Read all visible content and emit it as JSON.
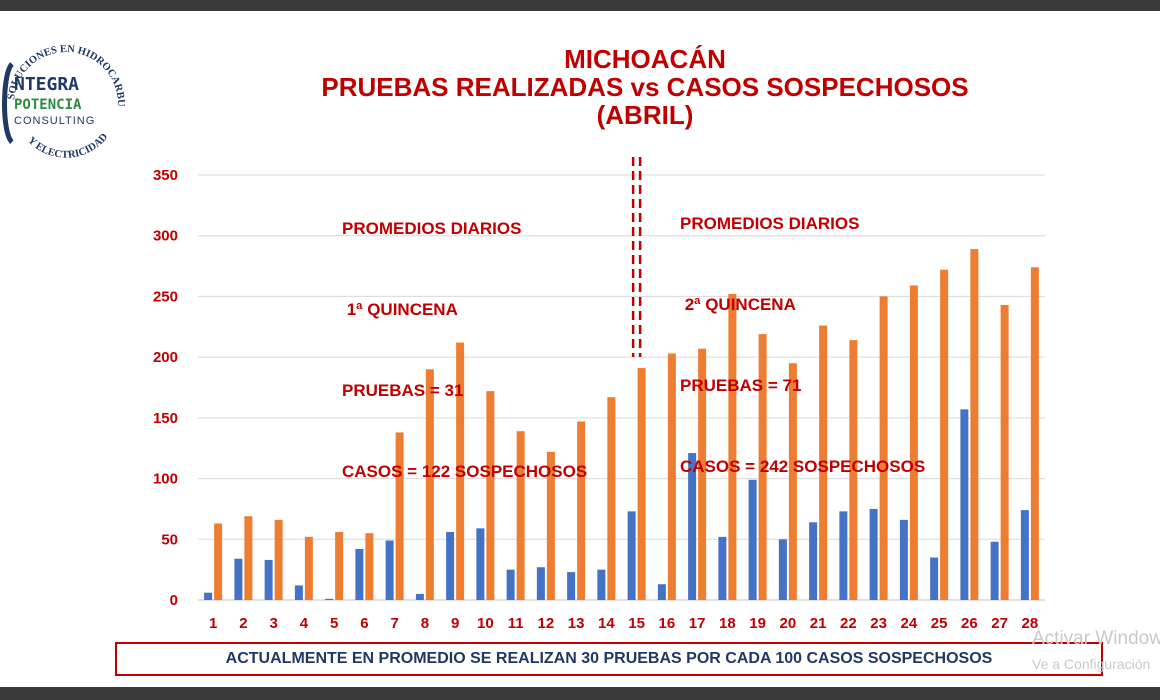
{
  "logo": {
    "arc_top": "SOLUCIONES EN HIDROCARBUROS",
    "arc_bottom": "Y ELECTRICIDAD",
    "word1": "NTEGRA",
    "word2": "POTENCIA",
    "word3": "CONSULTING",
    "colors": {
      "green": "#2e8b3e",
      "blue": "#1f3864"
    }
  },
  "titles": [
    "MICHOACÁN",
    "PRUEBAS REALIZADAS vs CASOS SOSPECHOSOS",
    "(ABRIL)"
  ],
  "annotations": {
    "first": [
      "PROMEDIOS DIARIOS",
      " 1ª QUINCENA",
      "PRUEBAS = 31",
      "CASOS = 122 SOSPECHOSOS"
    ],
    "second": [
      "PROMEDIOS DIARIOS",
      " 2ª QUINCENA",
      "PRUEBAS = 71",
      "CASOS = 242 SOSPECHOSOS"
    ]
  },
  "footer": "ACTUALMENTE EN PROMEDIO SE REALIZAN 30 PRUEBAS POR CADA 100 CASOS SOSPECHOSOS",
  "watermark": {
    "line1": "Activar Windows",
    "line2": "Ve a Configuración"
  },
  "chart_data": {
    "type": "bar",
    "title": "MICHOACÁN PRUEBAS REALIZADAS vs CASOS SOSPECHOSOS (ABRIL)",
    "categories": [
      "1",
      "2",
      "3",
      "4",
      "5",
      "6",
      "7",
      "8",
      "9",
      "10",
      "11",
      "12",
      "13",
      "14",
      "15",
      "16",
      "17",
      "18",
      "19",
      "20",
      "21",
      "22",
      "23",
      "24",
      "25",
      "26",
      "27",
      "28"
    ],
    "series": [
      {
        "color": "#4472c4",
        "values": [
          6,
          34,
          33,
          12,
          1,
          42,
          49,
          5,
          56,
          59,
          25,
          27,
          23,
          25,
          73,
          13,
          121,
          52,
          99,
          50,
          64,
          73,
          75,
          66,
          35,
          157,
          48,
          74
        ]
      },
      {
        "color": "#ed7d31",
        "values": [
          63,
          69,
          66,
          52,
          56,
          55,
          138,
          190,
          212,
          172,
          139,
          122,
          147,
          167,
          191,
          203,
          207,
          252,
          219,
          195,
          226,
          214,
          250,
          259,
          272,
          289,
          243,
          274
        ]
      }
    ],
    "yticks": [
      0,
      50,
      100,
      150,
      200,
      250,
      300,
      350
    ],
    "ylim": [
      0,
      350
    ],
    "grid": true,
    "divider_after_category": "15",
    "xlabel": "",
    "ylabel": ""
  }
}
